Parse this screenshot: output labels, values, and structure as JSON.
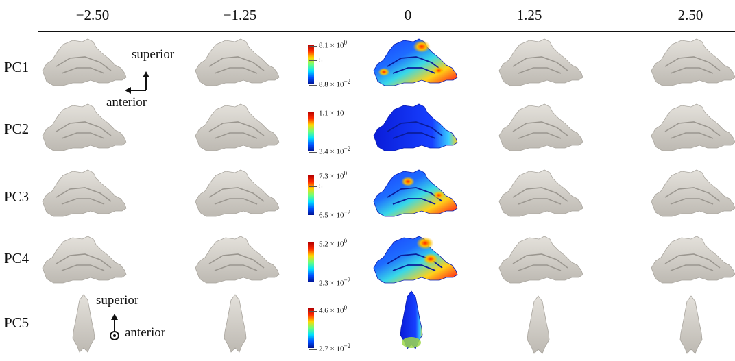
{
  "columns": [
    "−2.50",
    "−1.25",
    "0",
    "1.25",
    "2.50"
  ],
  "rows": [
    {
      "label": "PC1",
      "cb_max": "8.1 × 10",
      "cb_max_exp": "0",
      "cb_mid": "5",
      "cb_min": "8.8 × 10",
      "cb_min_exp": "−2"
    },
    {
      "label": "PC2",
      "cb_max": "1.1 × 10",
      "cb_max_exp": "",
      "cb_mid": "",
      "cb_min": "3.4 × 10",
      "cb_min_exp": "−2"
    },
    {
      "label": "PC3",
      "cb_max": "7.3 × 10",
      "cb_max_exp": "0",
      "cb_mid": "5",
      "cb_min": "6.5 × 10",
      "cb_min_exp": "−2"
    },
    {
      "label": "PC4",
      "cb_max": "5.2 × 10",
      "cb_max_exp": "0",
      "cb_mid": "",
      "cb_min": "2.3 × 10",
      "cb_min_exp": "−2"
    },
    {
      "label": "PC5",
      "cb_max": "4.6 × 10",
      "cb_max_exp": "0",
      "cb_mid": "",
      "cb_min": "2.7 × 10",
      "cb_min_exp": "−2"
    }
  ],
  "orientation": {
    "side": {
      "up": "superior",
      "left": "anterior"
    },
    "top": {
      "up": "superior",
      "out": "anterior"
    }
  },
  "colors": {
    "shape_gray": "#d9d6d0",
    "shape_shadow": "#a9a59e",
    "rule": "#111111"
  }
}
